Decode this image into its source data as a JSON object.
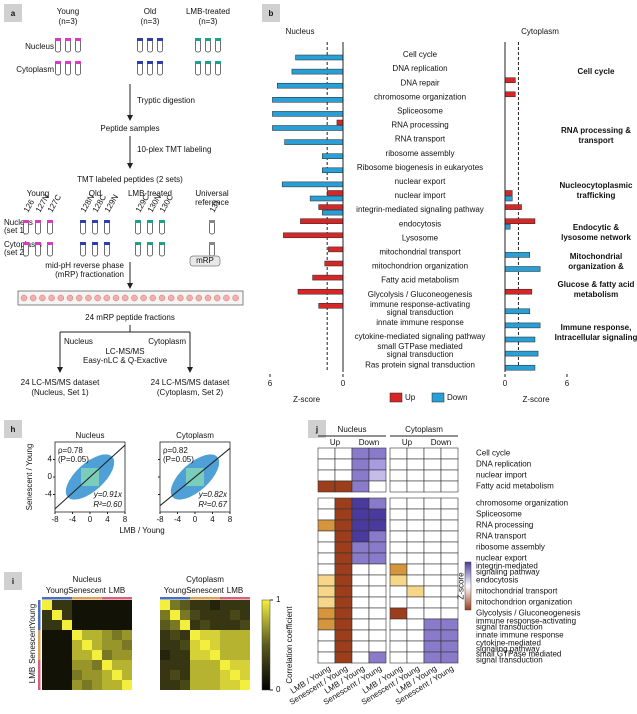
{
  "panels": {
    "a": {
      "label": "a",
      "groups": [
        [
          "Young",
          "(n=3)"
        ],
        [
          "Old",
          "(n=3)"
        ],
        [
          "LMB-treated",
          "(n=3)"
        ]
      ],
      "rows": [
        "Nucleus",
        "Cytoplasm"
      ],
      "steps": [
        "Tryptic digestion",
        "Peptide samples",
        "10-plex TMT labeling",
        "TMT labeled peptides (2 sets)"
      ],
      "tmt_groups": [
        [
          "Young"
        ],
        [
          "Old"
        ],
        [
          "LMB-treated"
        ],
        [
          "Universal",
          "reference"
        ]
      ],
      "tmt_rows": [
        [
          "Nucleus",
          "(set 1)"
        ],
        [
          "Cytoplasm",
          "(set 2)"
        ]
      ],
      "tags": [
        [
          "126",
          "127N",
          "127C"
        ],
        [
          "128N",
          "128C",
          "129N"
        ],
        [
          "129C",
          "130N",
          "130C"
        ],
        [
          "131"
        ]
      ],
      "tag_colors": [
        "#d63cc8",
        "#2a3fb0",
        "#1fa08a",
        "#888888"
      ],
      "fractionation": [
        "mid-pH reverse phase",
        "(mRP) fractionation"
      ],
      "device": "mRP",
      "fractions": "24 mRP peptide fractions",
      "split": [
        "Nucleus",
        "Cytoplasm"
      ],
      "lcms": [
        "LC-MS/MS",
        "Easy-nLC & Q-Exactive"
      ],
      "datasets": [
        [
          "24 LC-MS/MS dataset",
          "(Nucleus, Set 1)"
        ],
        [
          "24 LC-MS/MS dataset",
          "(Cytoplasm, Set 2)"
        ]
      ]
    },
    "b": {
      "label": "b",
      "type": "bar",
      "titles": [
        "Nucleus",
        "Cytoplasm"
      ],
      "xlabel": "Z-score",
      "terms": [
        {
          "lines": [
            "Cell cycle"
          ],
          "color": "#6b6bdc"
        },
        {
          "lines": [
            "DNA replication"
          ],
          "color": "#6b6bdc"
        },
        {
          "lines": [
            "DNA repair"
          ],
          "color": "#6b6bdc"
        },
        {
          "lines": [
            "chromosome organization"
          ],
          "color": "#6b6bdc"
        },
        {
          "lines": [
            "Spliceosome"
          ],
          "color": "#e8343c"
        },
        {
          "lines": [
            "RNA processing"
          ],
          "color": "#e8343c"
        },
        {
          "lines": [
            "RNA transport"
          ],
          "color": "#e8343c"
        },
        {
          "lines": [
            "ribosome assembly"
          ],
          "color": "#e8343c"
        },
        {
          "lines": [
            "Ribosome biogenesis in eukaryotes"
          ],
          "color": "#e8343c"
        },
        {
          "lines": [
            "nuclear export"
          ],
          "color": "#a0a0a0"
        },
        {
          "lines": [
            "nuclear import"
          ],
          "color": "#a0a0a0"
        },
        {
          "lines": [
            "integrin-mediated signaling pathway"
          ],
          "color": "#111111"
        },
        {
          "lines": [
            "endocytosis"
          ],
          "color": "#c9b200"
        },
        {
          "lines": [
            "Lysosome"
          ],
          "color": "#c9b200"
        },
        {
          "lines": [
            "mitochondrial transport"
          ],
          "color": "#1aa3b8"
        },
        {
          "lines": [
            "mitochondrion organization"
          ],
          "color": "#1aa3b8"
        },
        {
          "lines": [
            "Fatty acid metabolism"
          ],
          "color": "#1f3fb5"
        },
        {
          "lines": [
            "Glycolysis / Gluconeogenesis"
          ],
          "color": "#1f3fb5"
        },
        {
          "lines": [
            "immune response-activating",
            "signal transduction"
          ],
          "color": "#7dbb22"
        },
        {
          "lines": [
            "innate immune response"
          ],
          "color": "#7dbb22"
        },
        {
          "lines": [
            "cytokine-mediated signaling pathway"
          ],
          "color": "#7dbb22"
        },
        {
          "lines": [
            "small GTPase mediated",
            "signal transduction"
          ],
          "color": "#7dbb22"
        },
        {
          "lines": [
            "Ras protein signal transduction"
          ],
          "color": "#7dbb22"
        }
      ],
      "series": [
        {
          "name": "Up",
          "color": "#d62728",
          "nucleus": [
            null,
            null,
            null,
            null,
            null,
            0.5,
            null,
            null,
            null,
            null,
            1.3,
            2.0,
            3.5,
            4.9,
            1.2,
            1.5,
            2.5,
            3.7,
            2.0,
            null,
            null,
            null,
            null
          ],
          "cytoplasm": [
            null,
            null,
            1.0,
            1.0,
            null,
            null,
            null,
            null,
            null,
            null,
            0.7,
            1.6,
            2.9,
            null,
            null,
            null,
            null,
            2.6,
            null,
            null,
            null,
            null,
            null
          ]
        },
        {
          "name": "Down",
          "color": "#2a9fd6",
          "nucleus": [
            3.9,
            4.2,
            5.4,
            5.8,
            5.8,
            5.8,
            4.8,
            1.7,
            1.7,
            5.0,
            2.7,
            1.7,
            null,
            null,
            null,
            null,
            null,
            null,
            null,
            null,
            null,
            null,
            null
          ],
          "cytoplasm": [
            null,
            null,
            null,
            null,
            null,
            null,
            null,
            null,
            null,
            null,
            0.7,
            null,
            0.5,
            null,
            2.4,
            3.4,
            null,
            null,
            2.4,
            3.4,
            2.9,
            3.2,
            2.9
          ]
        }
      ],
      "nucleus_axis": {
        "xlim": [
          6,
          0
        ],
        "xticks": [
          6,
          0
        ],
        "threshold": 1.3
      },
      "cytoplasm_axis": {
        "xlim": [
          0,
          6
        ],
        "xticks": [
          0,
          6
        ],
        "threshold": 1.3
      },
      "cytoplasm_groups": [
        {
          "lines": [
            "Cell cycle"
          ],
          "color": "#6b6bdc"
        },
        {
          "lines": [
            "RNA processing &",
            "transport"
          ],
          "color": "#e8343c"
        },
        {
          "lines": [
            "Nucleocytoplasmic",
            "trafficking"
          ],
          "color": "#a0a0a0"
        },
        {
          "lines": [
            "Endocytic &",
            "lysosome network"
          ],
          "color": "#c9b200"
        },
        {
          "lines": [
            "Mitochondrial",
            "organization &"
          ],
          "color": "#1aa3b8"
        },
        {
          "lines": [
            "Glucose & fatty acid",
            "metabolism"
          ],
          "color": "#1f3fb5"
        },
        {
          "lines": [
            "Immune response,",
            "Intracellular signaling"
          ],
          "color": "#7dbb22"
        }
      ]
    },
    "h": {
      "label": "h",
      "type": "scatter",
      "xlabel": "LMB / Young",
      "ylabel": "Senescent / Young",
      "xlim": [
        -8,
        8
      ],
      "xticks": [
        -8,
        -4,
        0,
        4,
        8
      ],
      "ylim": [
        -8,
        8
      ],
      "yticks": [
        -4,
        0,
        4
      ],
      "fit_color": "#e8604c",
      "plots": [
        {
          "title": "Nucleus",
          "rho": "ρ=0.78",
          "p": "(P=0.05)",
          "fit": "y=0.91x",
          "slope": 0.91,
          "r2": "R²=0.60"
        },
        {
          "title": "Cytoplasm",
          "rho": "ρ=0.82",
          "p": "(P=0.05)",
          "fit": "y=0.82x",
          "slope": 0.82,
          "r2": "R²=0.67"
        }
      ]
    },
    "i": {
      "label": "i",
      "type": "heatmap",
      "groups": [
        "Young",
        "Senescent",
        "LMB"
      ],
      "group_colors": [
        "#4a6fc0",
        "#d9a35a",
        "#d9607a"
      ],
      "clim": [
        0,
        1
      ],
      "cticks": [
        0,
        1
      ],
      "clabel": "Correlation coefficient",
      "colors": [
        "#000000",
        "#5a5a1e",
        "#f4ef3c"
      ],
      "matrices": [
        {
          "title": "Nucleus",
          "values": [
            [
              1,
              0.3,
              0.3,
              0.1,
              0.1,
              0.1,
              0.1,
              0.1,
              0.1
            ],
            [
              0.3,
              1,
              0.3,
              0.1,
              0.1,
              0.1,
              0.1,
              0.1,
              0.1
            ],
            [
              0.3,
              0.3,
              1,
              0.1,
              0.1,
              0.1,
              0.1,
              0.1,
              0.1
            ],
            [
              0.1,
              0.1,
              0.1,
              1,
              0.8,
              0.8,
              0.7,
              0.6,
              0.7
            ],
            [
              0.1,
              0.1,
              0.1,
              0.8,
              1,
              0.8,
              0.7,
              0.7,
              0.6
            ],
            [
              0.1,
              0.1,
              0.1,
              0.8,
              0.8,
              1,
              0.6,
              0.7,
              0.7
            ],
            [
              0.1,
              0.1,
              0.1,
              0.7,
              0.7,
              0.6,
              1,
              0.8,
              0.8
            ],
            [
              0.1,
              0.1,
              0.1,
              0.6,
              0.7,
              0.7,
              0.8,
              1,
              0.8
            ],
            [
              0.1,
              0.1,
              0.1,
              0.7,
              0.6,
              0.7,
              0.8,
              0.8,
              1
            ]
          ]
        },
        {
          "title": "Cytoplasm",
          "values": [
            [
              1,
              0.6,
              0.5,
              0.3,
              0.3,
              0.2,
              0.3,
              0.3,
              0.3
            ],
            [
              0.6,
              1,
              0.6,
              0.4,
              0.3,
              0.3,
              0.3,
              0.4,
              0.3
            ],
            [
              0.5,
              0.6,
              1,
              0.3,
              0.4,
              0.3,
              0.3,
              0.3,
              0.4
            ],
            [
              0.3,
              0.4,
              0.3,
              1,
              0.9,
              0.9,
              0.8,
              0.8,
              0.8
            ],
            [
              0.3,
              0.3,
              0.4,
              0.9,
              1,
              0.9,
              0.8,
              0.8,
              0.8
            ],
            [
              0.2,
              0.3,
              0.3,
              0.9,
              0.9,
              1,
              0.8,
              0.8,
              0.8
            ],
            [
              0.3,
              0.3,
              0.3,
              0.8,
              0.8,
              0.8,
              1,
              0.9,
              0.9
            ],
            [
              0.3,
              0.4,
              0.3,
              0.8,
              0.8,
              0.8,
              0.9,
              1,
              0.9
            ],
            [
              0.3,
              0.3,
              0.4,
              0.8,
              0.8,
              0.8,
              0.9,
              0.9,
              1
            ]
          ]
        }
      ]
    },
    "j": {
      "label": "j",
      "type": "heatmap",
      "compartments": [
        "Nucleus",
        "Cytoplasm"
      ],
      "directions": [
        "Up",
        "Down"
      ],
      "ratios": [
        "LMB / Young",
        "Senescent / Young"
      ],
      "clabel": "Z-score",
      "zlim": [
        0,
        3
      ],
      "up_colors": [
        "#ffffff",
        "#f2c14e",
        "#9c3d1c"
      ],
      "down_colors": [
        "#ffffff",
        "#a99be0",
        "#4b3a9e"
      ],
      "groups": [
        [
          {
            "lines": [
              "Cell cycle"
            ],
            "color": "#6b6bdc",
            "values": [
              0,
              0,
              2,
              2,
              0,
              0,
              0,
              0
            ]
          },
          {
            "lines": [
              "DNA replication"
            ],
            "color": "#6b6bdc",
            "values": [
              0,
              0,
              2,
              1.5,
              0,
              0,
              0,
              0
            ]
          },
          {
            "lines": [
              "nuclear import"
            ],
            "color": "#a0a0a0",
            "values": [
              0,
              0,
              2,
              1,
              0,
              0,
              0,
              0
            ]
          },
          {
            "lines": [
              "Fatty acid metabolism"
            ],
            "color": "#1f3fb5",
            "values": [
              3,
              3,
              2,
              0,
              0,
              0,
              0,
              0
            ]
          }
        ],
        [
          {
            "lines": [
              "chromosome organization"
            ],
            "color": "#6b6bdc",
            "values": [
              0,
              3,
              3,
              2,
              0,
              0,
              0,
              0
            ]
          },
          {
            "lines": [
              "Spliceosome"
            ],
            "color": "#e8343c",
            "values": [
              0,
              3,
              3,
              3,
              0,
              0,
              0,
              0
            ]
          },
          {
            "lines": [
              "RNA processing"
            ],
            "color": "#e8343c",
            "values": [
              2,
              3,
              3,
              3,
              0,
              0,
              0,
              0
            ]
          },
          {
            "lines": [
              "RNA transport"
            ],
            "color": "#e8343c",
            "values": [
              0,
              3,
              3,
              2,
              0,
              0,
              0,
              0
            ]
          },
          {
            "lines": [
              "ribosome assembly"
            ],
            "color": "#e8343c",
            "values": [
              0,
              3,
              2,
              2,
              0,
              0,
              0,
              0
            ]
          },
          {
            "lines": [
              "nuclear export"
            ],
            "color": "#a0a0a0",
            "values": [
              0,
              3,
              2,
              2,
              0,
              0,
              0,
              0
            ]
          },
          {
            "lines": [
              "integrin-mediated",
              "signaling pathway"
            ],
            "color": "#111111",
            "values": [
              0,
              3,
              0,
              0,
              2,
              0,
              0,
              0
            ]
          },
          {
            "lines": [
              "endocytosis"
            ],
            "color": "#c9b200",
            "values": [
              1,
              3,
              0,
              0,
              1,
              0,
              0,
              0
            ]
          },
          {
            "lines": [
              "mitochondrial transport"
            ],
            "color": "#1aa3b8",
            "values": [
              1,
              3,
              0,
              0,
              0,
              1,
              0,
              0
            ]
          },
          {
            "lines": [
              "mitochondrion organization"
            ],
            "color": "#1aa3b8",
            "values": [
              1,
              3,
              0,
              0,
              0,
              0,
              0,
              0
            ]
          },
          {
            "lines": [
              "Glycolysis / Gluconeogenesis"
            ],
            "color": "#1f3fb5",
            "values": [
              2,
              3,
              0,
              0,
              3,
              0,
              0,
              0
            ]
          },
          {
            "lines": [
              "immune response-activating",
              "signal transduction"
            ],
            "color": "#7dbb22",
            "values": [
              2,
              3,
              0,
              0,
              0,
              0,
              2,
              2
            ]
          },
          {
            "lines": [
              "innate immune response"
            ],
            "color": "#7dbb22",
            "values": [
              0,
              3,
              0,
              0,
              0,
              0,
              2,
              2
            ]
          },
          {
            "lines": [
              "cytokine-mediated",
              "signaling pathway"
            ],
            "color": "#7dbb22",
            "values": [
              0,
              3,
              0,
              0,
              0,
              0,
              2,
              2
            ]
          },
          {
            "lines": [
              "small GTPase mediated",
              "signal transduction"
            ],
            "color": "#7dbb22",
            "values": [
              0,
              3,
              0,
              2,
              0,
              0,
              2,
              2
            ]
          }
        ]
      ]
    }
  }
}
